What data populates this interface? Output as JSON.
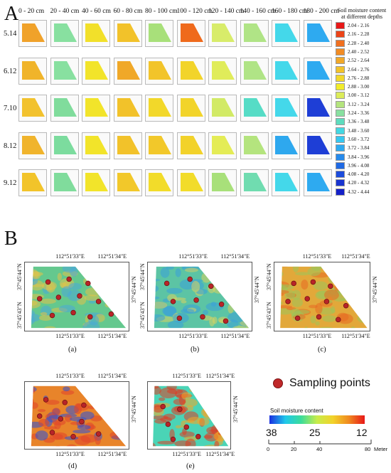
{
  "panel_a": {
    "letter": "A",
    "depths": [
      "0 - 20 cm",
      "20 - 40 cm",
      "40 - 60 cm",
      "60 - 80 cm",
      "80 - 100 cm",
      "100 - 120 cm",
      "120 - 140 cm",
      "140 - 160 cm",
      "160 - 180 cm",
      "180 - 200 cm"
    ],
    "dates": [
      "5.14",
      "6.12",
      "7.10",
      "8.12",
      "9.12"
    ],
    "grid_colors": [
      [
        "#f0a22a",
        "#88e0a0",
        "#f2e02a",
        "#f2c22a",
        "#a8e07a",
        "#ef6a1c",
        "#d8ec6a",
        "#b0e486",
        "#44d8ea",
        "#2eaaf0"
      ],
      [
        "#f0b42a",
        "#88e0a0",
        "#f2e42a",
        "#f0a828",
        "#f2c42a",
        "#f2d42a",
        "#e0ec5a",
        "#b0e486",
        "#44d8ea",
        "#2eaaf0"
      ],
      [
        "#f2c22e",
        "#80dc9c",
        "#f2e42a",
        "#f2c22a",
        "#f2d82a",
        "#f2d42a",
        "#d2ea66",
        "#56dcc6",
        "#44d8ea",
        "#1e3ed6"
      ],
      [
        "#f0b42c",
        "#7cdc9e",
        "#f2e42a",
        "#f2c22a",
        "#f2c82a",
        "#f2d22a",
        "#e4ec56",
        "#b4e47e",
        "#2ea8ee",
        "#1e3ed6"
      ],
      [
        "#f2c42a",
        "#80dc9c",
        "#f2e42a",
        "#f2c82a",
        "#f2dc2a",
        "#f2dc2a",
        "#a8e07a",
        "#70dcb0",
        "#44d8ea",
        "#2eaaf0"
      ]
    ],
    "legend": {
      "title": "Soil moisture content at different depths",
      "items": [
        {
          "label": "2.04 - 2.16",
          "color": "#e81818"
        },
        {
          "label": "2.16 - 2.28",
          "color": "#ec4418"
        },
        {
          "label": "2.28 - 2.40",
          "color": "#f07020"
        },
        {
          "label": "2.40 - 2.52",
          "color": "#f28c24"
        },
        {
          "label": "2.52 - 2.64",
          "color": "#f2a828"
        },
        {
          "label": "2.64 - 2.76",
          "color": "#f2c22a"
        },
        {
          "label": "2.76 - 2.88",
          "color": "#f2d82a"
        },
        {
          "label": "2.88 - 3.00",
          "color": "#f2ec2a"
        },
        {
          "label": "3.00 - 3.12",
          "color": "#dcec5a"
        },
        {
          "label": "3.12 - 3.24",
          "color": "#b4e47e"
        },
        {
          "label": "3.24 - 3.36",
          "color": "#88e0a0"
        },
        {
          "label": "3.36 - 3.48",
          "color": "#5edcbe"
        },
        {
          "label": "3.48 - 3.60",
          "color": "#44d8e2"
        },
        {
          "label": "3.60 - 3.72",
          "color": "#36c8f0"
        },
        {
          "label": "3.72 - 3.84",
          "color": "#2eaaf0"
        },
        {
          "label": "3.84 - 3.96",
          "color": "#268aec"
        },
        {
          "label": "3.96 - 4.08",
          "color": "#206ae4"
        },
        {
          "label": "4.08 - 4.20",
          "color": "#1c4cdc"
        },
        {
          "label": "4.20 - 4.32",
          "color": "#1834d0"
        },
        {
          "label": "4.32 - 4.44",
          "color": "#1420c8"
        }
      ]
    }
  },
  "panel_b": {
    "letter": "B",
    "maps": [
      {
        "caption": "(a)",
        "top_left_lon": "112°51'33\"E",
        "top_right_lon": "112°51'34\"E",
        "bottom_left_lon": "112°51'33\"E",
        "bottom_right_lon": "112°51'34\"E",
        "left_lat1": "37°45'44\"N",
        "left_lat2": "37°45'43\"N",
        "right_lat": "37°45'44\"N"
      },
      {
        "caption": "(b)",
        "top_left_lon": "112°51'33\"E",
        "top_right_lon": "112°51'34\"E",
        "bottom_left_lon": "112°51'33\"E",
        "bottom_right_lon": "112°51'34\"E",
        "left_lat1": "37°45'44\"N",
        "left_lat2": "37°45'43\"N",
        "right_lat": "37°45'44\"N"
      },
      {
        "caption": "(c)",
        "top_left_lon": "112°51'33\"E",
        "top_right_lon": "112°51'34\"E",
        "bottom_left_lon": "112°51'33\"E",
        "bottom_right_lon": "112°51'34\"E",
        "left_lat1": "37°45'44\"N",
        "left_lat2": "37°45'43\"N",
        "right_lat": "37°45'44\"N"
      },
      {
        "caption": "(d)",
        "top_left_lon": "112°51'33\"E",
        "top_right_lon": "112°51'34\"E",
        "bottom_left_lon": "112°51'33\"E",
        "bottom_right_lon": "112°51'34\"E",
        "left_lat1": "",
        "left_lat2": "",
        "right_lat": "37°45'44\"N"
      },
      {
        "caption": "(e)",
        "top_left_lon": "112°51'33\"E",
        "top_right_lon": "112°51'34\"E",
        "bottom_left_lon": "112°51'33\"E",
        "bottom_right_lon": "112°51'34\"E",
        "left_lat1": "",
        "left_lat2": "",
        "right_lat": "37°45'44\"N"
      }
    ],
    "sampling_label": "Sampling points",
    "colorbar": {
      "title": "Soil moisture content",
      "ticks": [
        "38",
        "25",
        "12"
      ],
      "colors": [
        "#1a2ee0",
        "#20c8ea",
        "#3cdc9a",
        "#c8ec4a",
        "#f2d22a",
        "#f08a20",
        "#e81818"
      ]
    },
    "scale": {
      "ticks": [
        "0",
        "20",
        "40",
        "80"
      ],
      "unit": "Meter"
    },
    "map_styles": [
      {
        "base": "#64c88e",
        "accent": "#e0c24a",
        "accent2": "#4aa8d8"
      },
      {
        "base": "#5cc4a4",
        "accent": "#3aa0d8",
        "accent2": "#d8d460"
      },
      {
        "base": "#e2a83a",
        "accent": "#9cc45a",
        "accent2": "#e86a22"
      },
      {
        "base": "#e8842a",
        "accent": "#e0442a",
        "accent2": "#2a52d8"
      },
      {
        "base": "#4ad4b6",
        "accent": "#e03a22",
        "accent2": "#f2a62a"
      }
    ]
  }
}
